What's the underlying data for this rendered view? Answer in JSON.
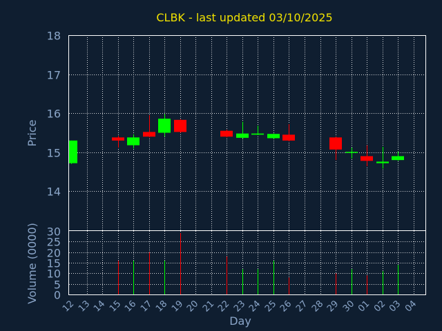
{
  "chart_data": {
    "type": "candlestick",
    "title": "CLBK - last updated 03/10/2025",
    "xlabel": "Day",
    "ylabel_price": "Price",
    "ylabel_volume": "Volume (0000)",
    "x_ticks": [
      "12",
      "13",
      "14",
      "15",
      "16",
      "17",
      "18",
      "19",
      "20",
      "21",
      "22",
      "23",
      "24",
      "25",
      "26",
      "27",
      "28",
      "29",
      "30",
      "01",
      "02",
      "03",
      "04"
    ],
    "price_ylim": [
      13.0,
      18.0
    ],
    "price_ticks": [
      14,
      15,
      16,
      17,
      18
    ],
    "volume_ylim": [
      0,
      30
    ],
    "volume_ticks": [
      0,
      5,
      10,
      15,
      20,
      25,
      30
    ],
    "grid": true,
    "colors": {
      "up": "#00ff00",
      "down": "#ff0000",
      "title": "#f0e100",
      "axis": "#8aa5c8",
      "background": "#0f1e30"
    },
    "candles": [
      {
        "day": "12",
        "open": 14.72,
        "close": 15.3,
        "high": 15.3,
        "low": 14.7,
        "volume": 0
      },
      {
        "day": "15",
        "open": 15.38,
        "close": 15.3,
        "high": 15.42,
        "low": 15.12,
        "volume": 16
      },
      {
        "day": "16",
        "open": 15.18,
        "close": 15.38,
        "high": 15.46,
        "low": 15.1,
        "volume": 16
      },
      {
        "day": "17",
        "open": 15.52,
        "close": 15.4,
        "high": 15.95,
        "low": 15.38,
        "volume": 20
      },
      {
        "day": "18",
        "open": 15.5,
        "close": 15.86,
        "high": 15.98,
        "low": 15.4,
        "volume": 16
      },
      {
        "day": "19",
        "open": 15.83,
        "close": 15.52,
        "high": 15.85,
        "low": 15.5,
        "volume": 29
      },
      {
        "day": "22",
        "open": 15.55,
        "close": 15.4,
        "high": 15.58,
        "low": 15.38,
        "volume": 18
      },
      {
        "day": "23",
        "open": 15.37,
        "close": 15.48,
        "high": 15.78,
        "low": 15.35,
        "volume": 12
      },
      {
        "day": "24",
        "open": 15.45,
        "close": 15.48,
        "high": 15.68,
        "low": 15.44,
        "volume": 12
      },
      {
        "day": "25",
        "open": 15.36,
        "close": 15.47,
        "high": 15.48,
        "low": 15.34,
        "volume": 16
      },
      {
        "day": "26",
        "open": 15.45,
        "close": 15.3,
        "high": 15.72,
        "low": 15.28,
        "volume": 8
      },
      {
        "day": "29",
        "open": 15.38,
        "close": 15.07,
        "high": 15.4,
        "low": 14.8,
        "volume": 10
      },
      {
        "day": "30",
        "open": 14.99,
        "close": 15.01,
        "high": 15.12,
        "low": 14.84,
        "volume": 12
      },
      {
        "day": "01",
        "open": 14.9,
        "close": 14.78,
        "high": 15.18,
        "low": 14.64,
        "volume": 9
      },
      {
        "day": "02",
        "open": 14.72,
        "close": 14.76,
        "high": 15.14,
        "low": 14.58,
        "volume": 11
      },
      {
        "day": "03",
        "open": 14.8,
        "close": 14.9,
        "high": 15.02,
        "low": 14.78,
        "volume": 14
      }
    ]
  }
}
